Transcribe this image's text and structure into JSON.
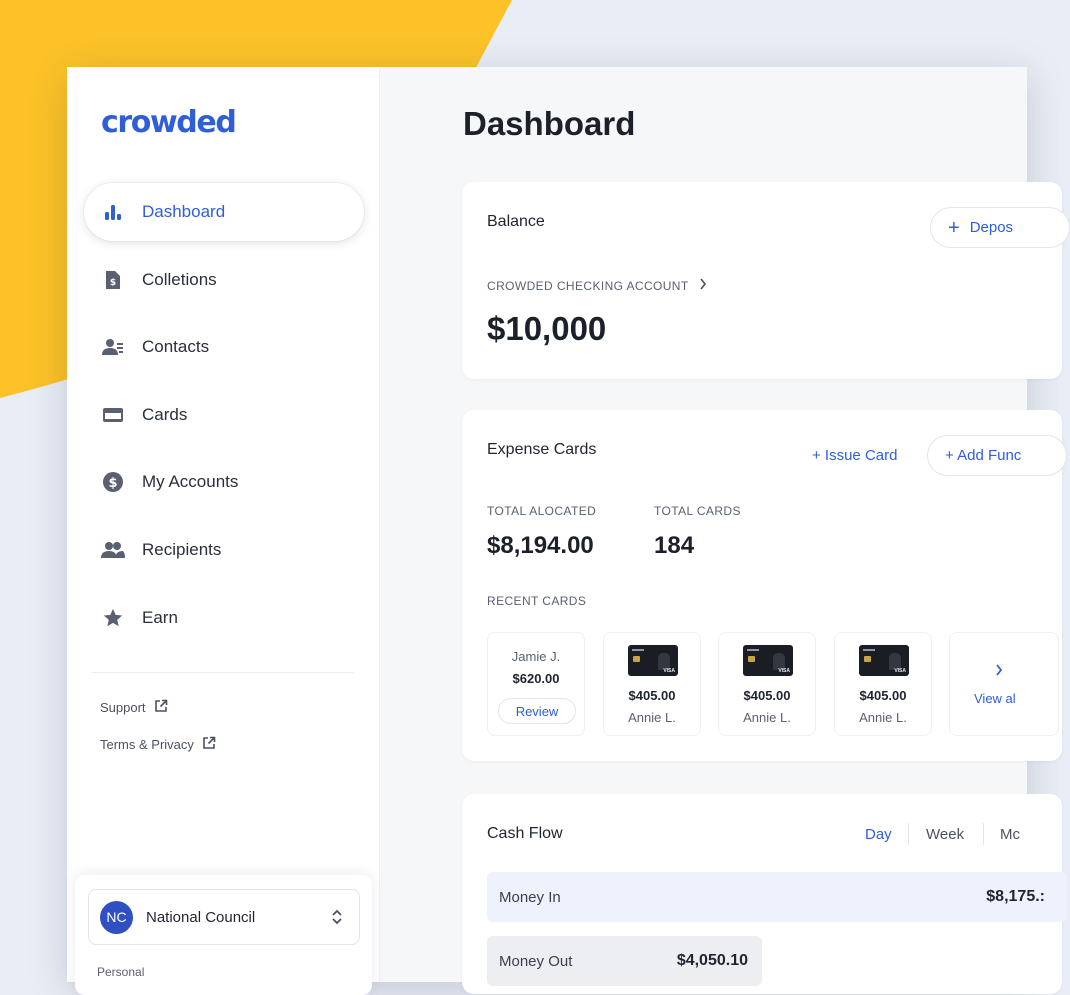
{
  "colors": {
    "accent": "#2f5ed8",
    "background_yellow": "#fcc228",
    "background": "#e9edf5",
    "avatar": "#2f4fc2"
  },
  "brand": {
    "logo_text": "crowded"
  },
  "sidebar": {
    "items": [
      {
        "label": "Dashboard",
        "icon": "bar-chart-icon",
        "active": true
      },
      {
        "label": "Colletions",
        "icon": "document-dollar-icon",
        "active": false
      },
      {
        "label": "Contacts",
        "icon": "contacts-icon",
        "active": false
      },
      {
        "label": "Cards",
        "icon": "credit-card-icon",
        "active": false
      },
      {
        "label": "My Accounts",
        "icon": "dollar-circle-icon",
        "active": false
      },
      {
        "label": "Recipients",
        "icon": "people-icon",
        "active": false
      },
      {
        "label": "Earn",
        "icon": "star-icon",
        "active": false
      }
    ],
    "links": [
      {
        "label": "Support",
        "icon": "external-link-icon"
      },
      {
        "label": "Terms & Privacy",
        "icon": "external-link-icon"
      }
    ],
    "org": {
      "initials": "NC",
      "name": "National Council",
      "sub": "Personal"
    }
  },
  "main": {
    "title": "Dashboard",
    "balance": {
      "title": "Balance",
      "deposit_label": "Depos",
      "account_label": "CROWDED CHECKING ACCOUNT",
      "amount": "$10,000"
    },
    "expense_cards": {
      "title": "Expense Cards",
      "issue_card_label": "+ Issue Card",
      "add_funds_label": "+ Add Func",
      "total_allocated_label": "TOTAL ALOCATED",
      "total_allocated_value": "$8,194.00",
      "total_cards_label": "TOTAL CARDS",
      "total_cards_value": "184",
      "recent_label": "RECENT CARDS",
      "pending": {
        "name": "Jamie J.",
        "amount": "$620.00",
        "action": "Review"
      },
      "cards": [
        {
          "amount": "$405.00",
          "name": "Annie L."
        },
        {
          "amount": "$405.00",
          "name": "Annie L."
        },
        {
          "amount": "$405.00",
          "name": "Annie L."
        }
      ],
      "view_all_label": "View al"
    },
    "cash_flow": {
      "title": "Cash Flow",
      "tabs": [
        "Day",
        "Week",
        "Mc"
      ],
      "active_tab": "Day",
      "money_in_label": "Money In",
      "money_in_value": "$8,175.:",
      "money_out_label": "Money Out",
      "money_out_value": "$4,050.10"
    }
  }
}
